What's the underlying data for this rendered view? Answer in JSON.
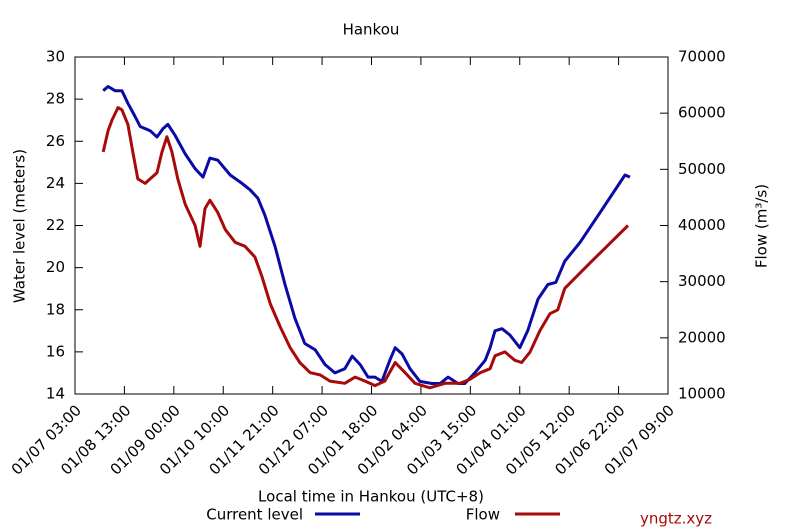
{
  "chart_data": {
    "type": "line",
    "title": "Hankou",
    "xlabel": "Local time in Hankou (UTC+8)",
    "ylabel": "Water level (meters)",
    "y2label": "Flow (m³/s)",
    "watermark": "yngtz.xyz",
    "xlim": [
      0,
      12
    ],
    "xticks": [
      {
        "value": 0,
        "label": "01/07 03:00"
      },
      {
        "value": 1,
        "label": "01/08 13:00"
      },
      {
        "value": 2,
        "label": "01/09 00:00"
      },
      {
        "value": 3,
        "label": "01/10 10:00"
      },
      {
        "value": 4,
        "label": "01/11 21:00"
      },
      {
        "value": 5,
        "label": "01/12 07:00"
      },
      {
        "value": 6,
        "label": "01/01 18:00"
      },
      {
        "value": 7,
        "label": "01/02 04:00"
      },
      {
        "value": 8,
        "label": "01/03 15:00"
      },
      {
        "value": 9,
        "label": "01/04 01:00"
      },
      {
        "value": 10,
        "label": "01/05 12:00"
      },
      {
        "value": 11,
        "label": "01/06 22:00"
      },
      {
        "value": 12,
        "label": "01/07 09:00"
      }
    ],
    "ylim": [
      14,
      30
    ],
    "yticks": [
      14,
      16,
      18,
      20,
      22,
      24,
      26,
      28,
      30
    ],
    "y2lim": [
      10000,
      70000
    ],
    "y2ticks": [
      10000,
      20000,
      30000,
      40000,
      50000,
      60000,
      70000
    ],
    "series": [
      {
        "name": "Current level",
        "color": "#0a0aa6",
        "x": [
          0.57,
          0.67,
          0.81,
          0.95,
          1.07,
          1.21,
          1.32,
          1.52,
          1.66,
          1.78,
          1.88,
          2.02,
          2.23,
          2.43,
          2.59,
          2.73,
          2.89,
          3.14,
          3.38,
          3.54,
          3.7,
          3.84,
          4.05,
          4.25,
          4.45,
          4.65,
          4.86,
          5.06,
          5.26,
          5.46,
          5.61,
          5.77,
          5.93,
          6.07,
          6.21,
          6.37,
          6.48,
          6.62,
          6.78,
          6.98,
          7.22,
          7.39,
          7.55,
          7.75,
          7.89,
          8.09,
          8.3,
          8.4,
          8.5,
          8.64,
          8.8,
          9.0,
          9.16,
          9.37,
          9.57,
          9.73,
          9.91,
          10.22,
          10.62,
          11.13,
          11.23
        ],
        "values": [
          28.4,
          28.6,
          28.4,
          28.4,
          27.8,
          27.2,
          26.7,
          26.5,
          26.2,
          26.6,
          26.8,
          26.3,
          25.4,
          24.7,
          24.3,
          25.2,
          25.1,
          24.4,
          24.0,
          23.7,
          23.3,
          22.5,
          21.0,
          19.2,
          17.6,
          16.4,
          16.1,
          15.4,
          15.0,
          15.2,
          15.8,
          15.4,
          14.8,
          14.8,
          14.6,
          15.6,
          16.2,
          15.9,
          15.2,
          14.6,
          14.5,
          14.5,
          14.8,
          14.5,
          14.5,
          15.0,
          15.6,
          16.2,
          17.0,
          17.1,
          16.8,
          16.2,
          17.0,
          18.5,
          19.2,
          19.3,
          20.3,
          21.2,
          22.6,
          24.4,
          24.3
        ]
      },
      {
        "name": "Flow",
        "color": "#a80a0a",
        "axis": "y2",
        "x": [
          0.57,
          0.67,
          0.75,
          0.87,
          0.95,
          1.07,
          1.17,
          1.27,
          1.42,
          1.52,
          1.66,
          1.76,
          1.86,
          1.96,
          2.08,
          2.23,
          2.43,
          2.53,
          2.63,
          2.73,
          2.89,
          3.04,
          3.24,
          3.44,
          3.64,
          3.78,
          3.95,
          4.15,
          4.35,
          4.55,
          4.76,
          4.96,
          5.16,
          5.46,
          5.67,
          5.87,
          6.07,
          6.27,
          6.48,
          6.68,
          6.88,
          7.18,
          7.49,
          7.79,
          7.99,
          8.2,
          8.4,
          8.5,
          8.7,
          8.9,
          9.04,
          9.21,
          9.41,
          9.61,
          9.77,
          9.91,
          10.42,
          11.19
        ],
        "values": [
          53100,
          56900,
          58800,
          61000,
          60600,
          58000,
          53100,
          48300,
          47500,
          48300,
          49400,
          53100,
          55800,
          53100,
          48300,
          43800,
          40000,
          36300,
          43000,
          44500,
          42300,
          39300,
          37000,
          36300,
          34400,
          31000,
          26100,
          22000,
          18300,
          15600,
          13800,
          13400,
          12300,
          11900,
          13000,
          12300,
          11500,
          12300,
          15600,
          13800,
          11900,
          11100,
          11900,
          11900,
          12600,
          13800,
          14500,
          16800,
          17500,
          16000,
          15600,
          17500,
          21300,
          24300,
          25000,
          28800,
          33300,
          40000
        ]
      }
    ]
  }
}
